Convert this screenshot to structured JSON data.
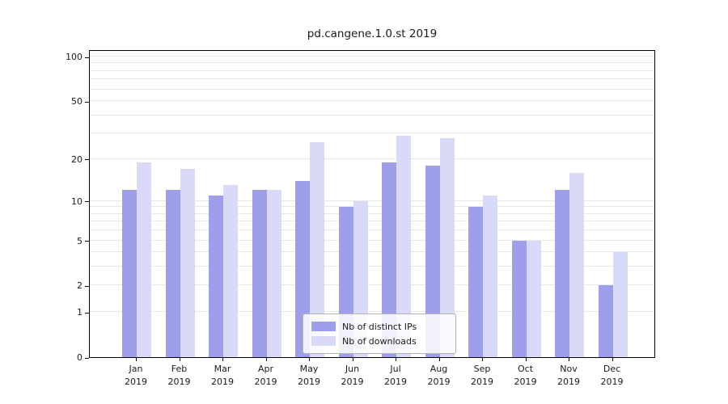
{
  "chart_data": {
    "type": "bar",
    "title": "pd.cangene.1.0.st 2019",
    "categories": [
      "Jan",
      "Feb",
      "Mar",
      "Apr",
      "May",
      "Jun",
      "Jul",
      "Aug",
      "Sep",
      "Oct",
      "Nov",
      "Dec"
    ],
    "category_year": "2019",
    "series": [
      {
        "name": "Nb of distinct IPs",
        "color": "#9e9eeb",
        "values": [
          12,
          12,
          11,
          12,
          14,
          9,
          19,
          18,
          9,
          5,
          12,
          2
        ]
      },
      {
        "name": "Nb of downloads",
        "color": "#d9d9f8",
        "values": [
          19,
          17,
          13,
          12,
          26,
          10,
          29,
          28,
          11,
          5,
          16,
          4
        ]
      }
    ],
    "y_axis": {
      "ticks": [
        0,
        1,
        2,
        5,
        10,
        20,
        50,
        100
      ],
      "scale": "log10(value+1)",
      "range": [
        0,
        112
      ]
    },
    "gridlines": [
      1,
      2,
      3,
      4,
      5,
      6,
      7,
      8,
      9,
      10,
      20,
      30,
      40,
      50,
      60,
      70,
      80,
      90,
      100
    ],
    "legend": {
      "position": "lower center",
      "entries": [
        "Nb of distinct IPs",
        "Nb of downloads"
      ]
    },
    "grid": "horizontal",
    "colors": {
      "grid": "#e7e7e7",
      "frame": "#000000",
      "text": "#1a1a1a",
      "background": "#ffffff"
    }
  }
}
